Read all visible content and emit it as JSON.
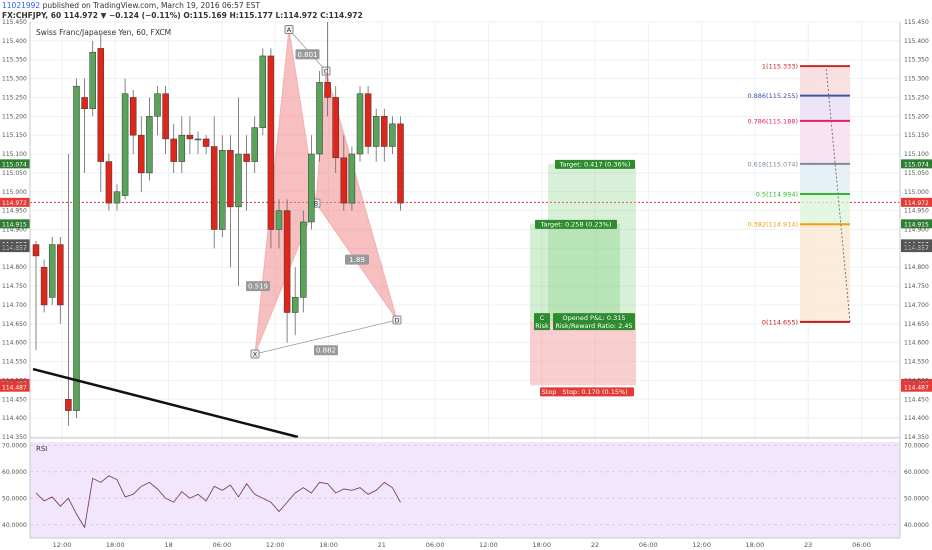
{
  "header": {
    "publisher_id": "11021992",
    "published_text": "published on TradingView.com, March 19, 2016 06:57 EST",
    "symbol_line": "FX:CHFJPY, 60  114.972 ▼ −0.124 (−0.11%)  O:115.169  H:115.177  L:114.972  C:114.972"
  },
  "chart_title": "Swiss Franc/Japanese Yen, 60, FXCM",
  "rsi_label": "RSI",
  "chart_data": {
    "type": "candlestick",
    "price_ylim": [
      114.35,
      115.45
    ],
    "price_ticks": [
      "115.450",
      "115.400",
      "115.350",
      "115.300",
      "115.250",
      "115.200",
      "115.150",
      "115.100",
      "115.050",
      "115.000",
      "114.950",
      "114.900",
      "114.850",
      "114.800",
      "114.750",
      "114.700",
      "114.650",
      "114.600",
      "114.550",
      "114.500",
      "114.450",
      "114.400",
      "114.350"
    ],
    "x_ticks": [
      "12:00",
      "18:00",
      "18",
      "06:00",
      "12:00",
      "18:00",
      "21",
      "06:00",
      "12:00",
      "18:00",
      "22",
      "06:00",
      "12:00",
      "18:00",
      "23",
      "06:00"
    ],
    "candles": [
      [
        114.86,
        114.83,
        114.87,
        114.58
      ],
      [
        114.8,
        114.7,
        114.82,
        114.68
      ],
      [
        114.72,
        114.86,
        114.88,
        114.7
      ],
      [
        114.86,
        114.7,
        114.88,
        114.65
      ],
      [
        114.45,
        114.42,
        115.1,
        114.38
      ],
      [
        114.42,
        115.28,
        115.3,
        114.4
      ],
      [
        115.25,
        115.22,
        115.3,
        115.05
      ],
      [
        115.22,
        115.37,
        115.4,
        115.2
      ],
      [
        115.38,
        115.08,
        115.42,
        115.0
      ],
      [
        115.08,
        114.97,
        115.1,
        114.95
      ],
      [
        114.97,
        115.0,
        115.02,
        114.95
      ],
      [
        114.99,
        115.26,
        115.3,
        114.98
      ],
      [
        115.25,
        115.15,
        115.27,
        115.1
      ],
      [
        115.15,
        115.05,
        115.2,
        115.0
      ],
      [
        115.05,
        115.2,
        115.25,
        115.03
      ],
      [
        115.2,
        115.26,
        115.28,
        115.15
      ],
      [
        115.26,
        115.14,
        115.28,
        115.1
      ],
      [
        115.14,
        115.08,
        115.18,
        115.05
      ],
      [
        115.08,
        115.15,
        115.2,
        115.05
      ],
      [
        115.15,
        115.14,
        115.2,
        115.1
      ],
      [
        115.14,
        115.14,
        115.16,
        115.1
      ],
      [
        115.14,
        115.12,
        115.15,
        115.1
      ],
      [
        115.12,
        114.9,
        115.2,
        114.85
      ],
      [
        114.9,
        115.11,
        115.15,
        114.88
      ],
      [
        115.11,
        114.96,
        115.15,
        114.8
      ],
      [
        114.96,
        115.1,
        115.25,
        114.75
      ],
      [
        115.1,
        115.08,
        115.15,
        114.95
      ],
      [
        115.08,
        115.17,
        115.2,
        115.05
      ],
      [
        115.17,
        115.36,
        115.38,
        115.15
      ],
      [
        115.36,
        114.9,
        115.38,
        114.85
      ],
      [
        114.9,
        114.95,
        114.98,
        114.85
      ],
      [
        114.95,
        114.68,
        114.98,
        114.6
      ],
      [
        114.68,
        114.72,
        114.8,
        114.62
      ],
      [
        114.72,
        114.92,
        114.95,
        114.68
      ],
      [
        114.92,
        115.1,
        115.15,
        114.9
      ],
      [
        115.1,
        115.29,
        115.32,
        115.08
      ],
      [
        115.29,
        115.25,
        115.45,
        115.2
      ],
      [
        115.25,
        115.09,
        115.28,
        115.05
      ],
      [
        115.09,
        114.97,
        115.15,
        114.95
      ],
      [
        114.97,
        115.1,
        115.12,
        114.95
      ],
      [
        115.1,
        115.26,
        115.28,
        115.08
      ],
      [
        115.26,
        115.12,
        115.28,
        115.1
      ],
      [
        115.12,
        115.2,
        115.22,
        115.08
      ],
      [
        115.2,
        115.12,
        115.22,
        115.08
      ],
      [
        115.12,
        115.18,
        115.2,
        115.1
      ],
      [
        115.18,
        114.97,
        115.2,
        114.95
      ]
    ],
    "price_tags": [
      {
        "label": "115.074",
        "bg": "#2e7d32"
      },
      {
        "label": "114.972",
        "bg": "#e53935"
      },
      {
        "label": "114.915",
        "bg": "#2e7d32"
      },
      {
        "label": "114.857",
        "bg": "#555555"
      },
      {
        "label": "114.857",
        "bg": "#555555"
      },
      {
        "label": "114.487",
        "bg": "#e53935"
      },
      {
        "label": "114.487",
        "bg": "#e53935"
      }
    ],
    "pattern": {
      "ratios": [
        "0.801",
        "0.519",
        "1.89",
        "0.882"
      ],
      "points": [
        "X",
        "A",
        "B",
        "C",
        "D"
      ],
      "X": [
        114.57,
        114.57
      ],
      "A": [
        115.43,
        115.43
      ],
      "B": [
        114.97,
        114.97
      ],
      "C": [
        115.32,
        115.32
      ],
      "D": [
        114.66,
        114.66
      ]
    },
    "positions": {
      "outer_target": "Target: 0.417 (0.36%)",
      "inner_target": "Target: 0.258 (0.23%)",
      "opened_pl": "Opened P&L: 0.315",
      "risk_reward": "Risk/Reward Ratio: 2.45",
      "stop": "Stop: 0.170 (0.15%)",
      "stop_prefix": "Stop",
      "left_c": "C",
      "left_risk": "Risk",
      "outer_top": 115.074,
      "inner_top": 114.915,
      "entry": 114.657,
      "stop_price": 114.487
    },
    "fib_levels": [
      {
        "label": "1(115.333)",
        "value": 115.333,
        "color": "#c62828"
      },
      {
        "label": "0.886(115.255)",
        "value": 115.255,
        "color": "#3f51b5"
      },
      {
        "label": "0.786(115.188)",
        "value": 115.188,
        "color": "#e91e63"
      },
      {
        "label": "0.618(115.074)",
        "value": 115.074,
        "color": "#7a8a9a"
      },
      {
        "label": "0.5(114.994)",
        "value": 114.994,
        "color": "#2eb82e"
      },
      {
        "label": "0.382(114.914)",
        "value": 114.914,
        "color": "#f39c12"
      },
      {
        "label": "0(114.655)",
        "value": 114.655,
        "color": "#b71c1c"
      }
    ],
    "current_price": 114.972,
    "rsi_ylim": [
      35000,
      72000
    ],
    "rsi_ticks": [
      "70.0000",
      "60.0000",
      "50.0000",
      "40.0000"
    ],
    "rsi_values": [
      52000,
      49000,
      50500,
      47000,
      50000,
      44000,
      39000,
      57500,
      56000,
      58500,
      57000,
      50500,
      51500,
      54500,
      56000,
      53500,
      50000,
      48500,
      52500,
      50000,
      51500,
      49000,
      54500,
      53000,
      55000,
      50500,
      55500,
      51500,
      50000,
      48500,
      45000,
      48500,
      52000,
      54000,
      52000,
      56000,
      55500,
      52000,
      53500,
      53000,
      54000,
      51500,
      53000,
      56000,
      54000,
      48500
    ],
    "colors": {
      "up": "#5aa35a",
      "down": "#e0261b",
      "rsi_line": "#7e3f7e",
      "rsi_bg": "#f1e6fb"
    }
  }
}
